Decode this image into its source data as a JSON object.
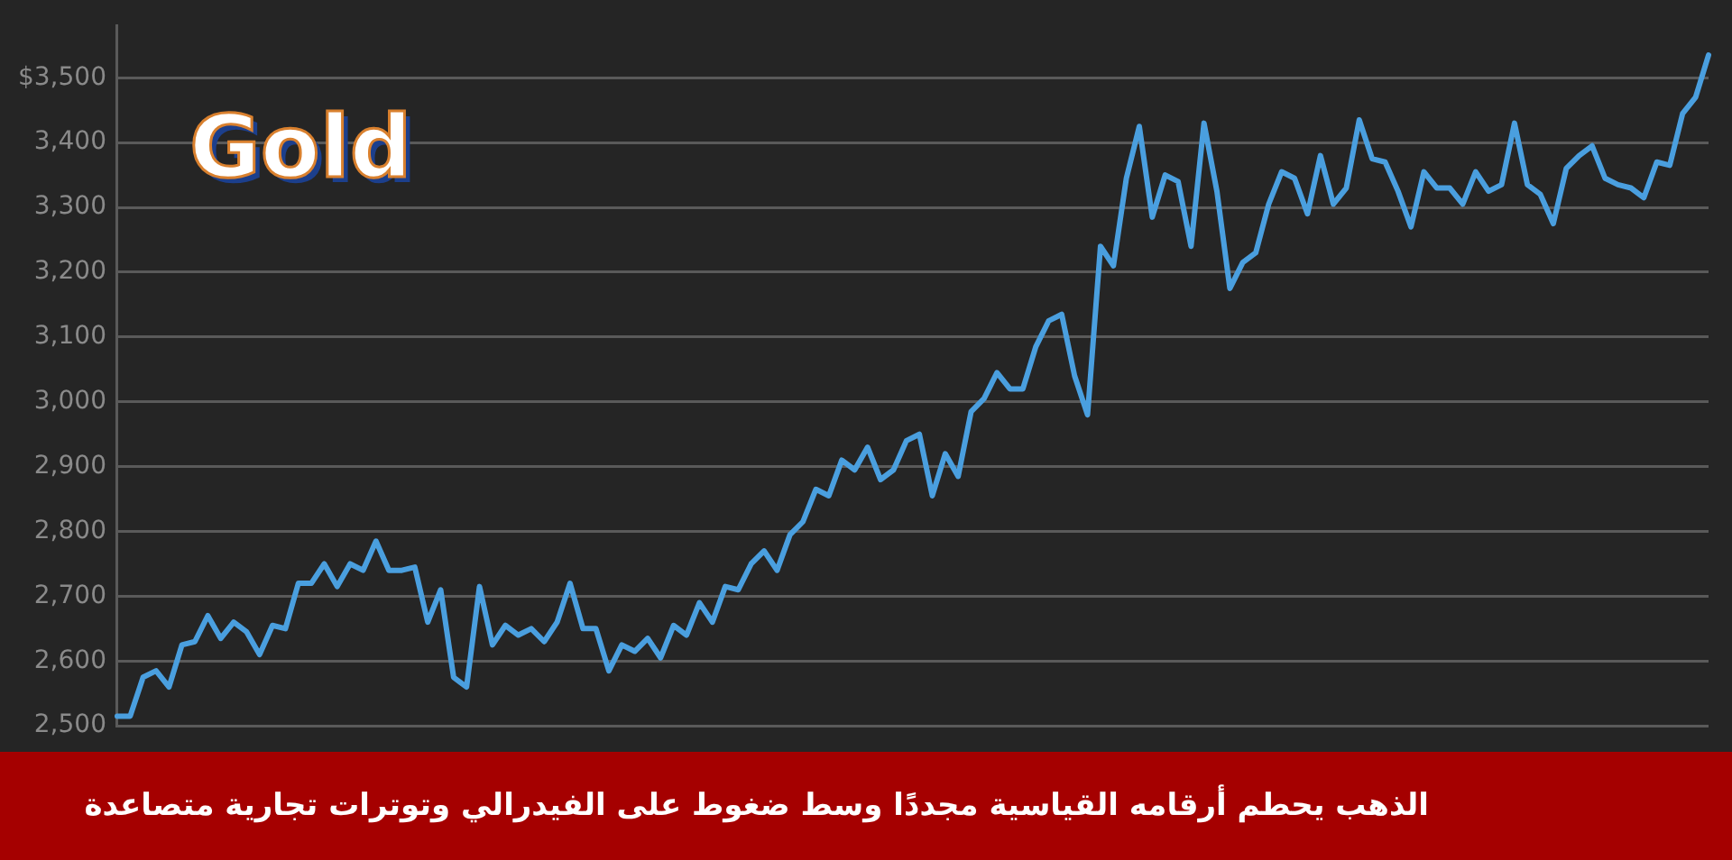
{
  "chart_data": {
    "type": "line",
    "title": "Gold",
    "annotations": [
      "الذهب يحطم أرقامه القياسية مجددًا وسط ضغوط على الفيدرالي وتوترات تجارية متصاعدة"
    ],
    "categories": [
      null,
      null,
      null,
      null,
      null,
      null,
      null,
      null,
      null,
      null,
      null,
      null,
      null,
      null,
      null,
      null,
      null,
      null,
      null,
      null,
      null,
      null,
      null,
      null,
      null,
      null,
      null,
      null,
      null,
      null,
      null,
      null,
      null,
      null,
      null,
      null,
      null,
      null,
      null,
      null,
      null,
      null,
      null,
      null,
      null,
      null,
      null,
      null,
      null,
      null,
      null,
      null,
      null,
      null,
      null,
      null,
      null,
      null,
      null,
      null,
      null,
      null,
      null,
      null,
      null,
      null,
      null,
      null,
      null,
      null,
      null,
      null,
      null,
      null,
      null,
      null,
      null,
      null,
      null,
      null,
      null,
      null,
      null,
      null,
      null,
      null,
      null,
      null,
      null,
      null,
      null,
      null,
      null,
      null,
      null,
      null,
      null,
      null,
      null,
      null,
      null,
      null,
      null,
      null,
      null,
      null,
      null,
      null,
      null,
      null,
      null,
      null,
      null,
      null,
      null,
      null,
      null,
      null,
      null,
      null,
      null,
      null,
      null,
      null
    ],
    "series": [
      {
        "color": "#4a9fdf",
        "values": [
          2515,
          2515,
          2575,
          2585,
          2560,
          2625,
          2630,
          2670,
          2635,
          2660,
          2645,
          2610,
          2655,
          2650,
          2720,
          2720,
          2750,
          2715,
          2750,
          2740,
          2785,
          2740,
          2740,
          2745,
          2660,
          2710,
          2575,
          2560,
          2715,
          2625,
          2655,
          2640,
          2650,
          2630,
          2660,
          2720,
          2650,
          2650,
          2585,
          2625,
          2615,
          2635,
          2605,
          2655,
          2640,
          2690,
          2660,
          2715,
          2710,
          2750,
          2770,
          2740,
          2795,
          2815,
          2865,
          2855,
          2910,
          2895,
          2930,
          2880,
          2895,
          2940,
          2950,
          2855,
          2920,
          2885,
          2985,
          3005,
          3045,
          3020,
          3020,
          3085,
          3125,
          3135,
          3040,
          2980,
          3240,
          3210,
          3345,
          3425,
          3285,
          3350,
          3340,
          3240,
          3430,
          3325,
          3175,
          3215,
          3230,
          3305,
          3355,
          3345,
          3290,
          3380,
          3305,
          3330,
          3435,
          3375,
          3370,
          3325,
          3270,
          3355,
          3330,
          3330,
          3305,
          3355,
          3325,
          3335,
          3430,
          3335,
          3320,
          3275,
          3360,
          3380,
          3395,
          3345,
          3335,
          3330,
          3315,
          3370,
          3365,
          3445,
          3470,
          3535
        ]
      }
    ],
    "ylim": [
      2500,
      3580
    ],
    "yticks": [
      {
        "value": 2500,
        "label": "2,500"
      },
      {
        "value": 2600,
        "label": "2,600"
      },
      {
        "value": 2700,
        "label": "2,700"
      },
      {
        "value": 2800,
        "label": "2,800"
      },
      {
        "value": 2900,
        "label": "2,900"
      },
      {
        "value": 3000,
        "label": "3,000"
      },
      {
        "value": 3100,
        "label": "3,100"
      },
      {
        "value": 3200,
        "label": "3,200"
      },
      {
        "value": 3300,
        "label": "3,300"
      },
      {
        "value": 3400,
        "label": "3,400"
      },
      {
        "value": 3500,
        "label": "$3,500"
      }
    ],
    "grid": "y",
    "legend": false,
    "tick_labels": "y",
    "marker": "none",
    "line_style": "solid"
  }
}
